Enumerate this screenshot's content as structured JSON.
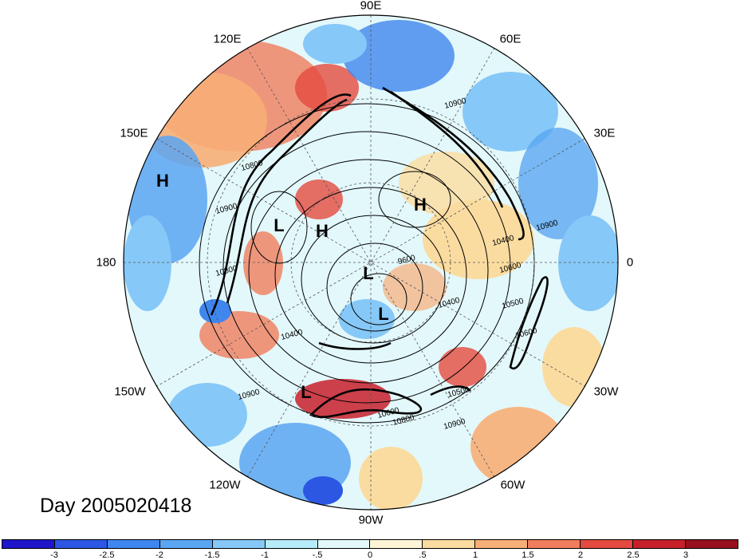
{
  "title": "Day 2005020418",
  "longitude_labels": [
    "90E",
    "60E",
    "120E",
    "30E",
    "150E",
    "0",
    "180",
    "30W",
    "150W",
    "60W",
    "120W",
    "90W"
  ],
  "pressure_systems": [
    "H",
    "L",
    "H",
    "H",
    "L",
    "L",
    "L"
  ],
  "contour_labels": [
    "10900",
    "10900",
    "10800",
    "10400",
    "10600",
    "9600",
    "10400",
    "10500",
    "10600",
    "10400",
    "10800",
    "10500",
    "10600",
    "10800",
    "10900",
    "10900",
    "10900"
  ],
  "colorbar": {
    "ticks": [
      "-3",
      "-2.5",
      "-2",
      "-1.5",
      "-1",
      "-.5",
      "0",
      ".5",
      "1",
      "1.5",
      "2",
      "2.5",
      "3"
    ],
    "colors": [
      "#1e16c8",
      "#2c57e2",
      "#3f86ee",
      "#5aa6f2",
      "#86c8f7",
      "#b6ecf9",
      "#e3f8fb",
      "#fff5d6",
      "#fbdca0",
      "#f7ae77",
      "#f07d5c",
      "#e44a3f",
      "#c8202b",
      "#980f1f"
    ]
  },
  "chart_data": {
    "type": "polar-stereographic-map",
    "field": "shaded anomaly with height contours",
    "colorbar_range": [
      -3,
      3
    ]
  }
}
